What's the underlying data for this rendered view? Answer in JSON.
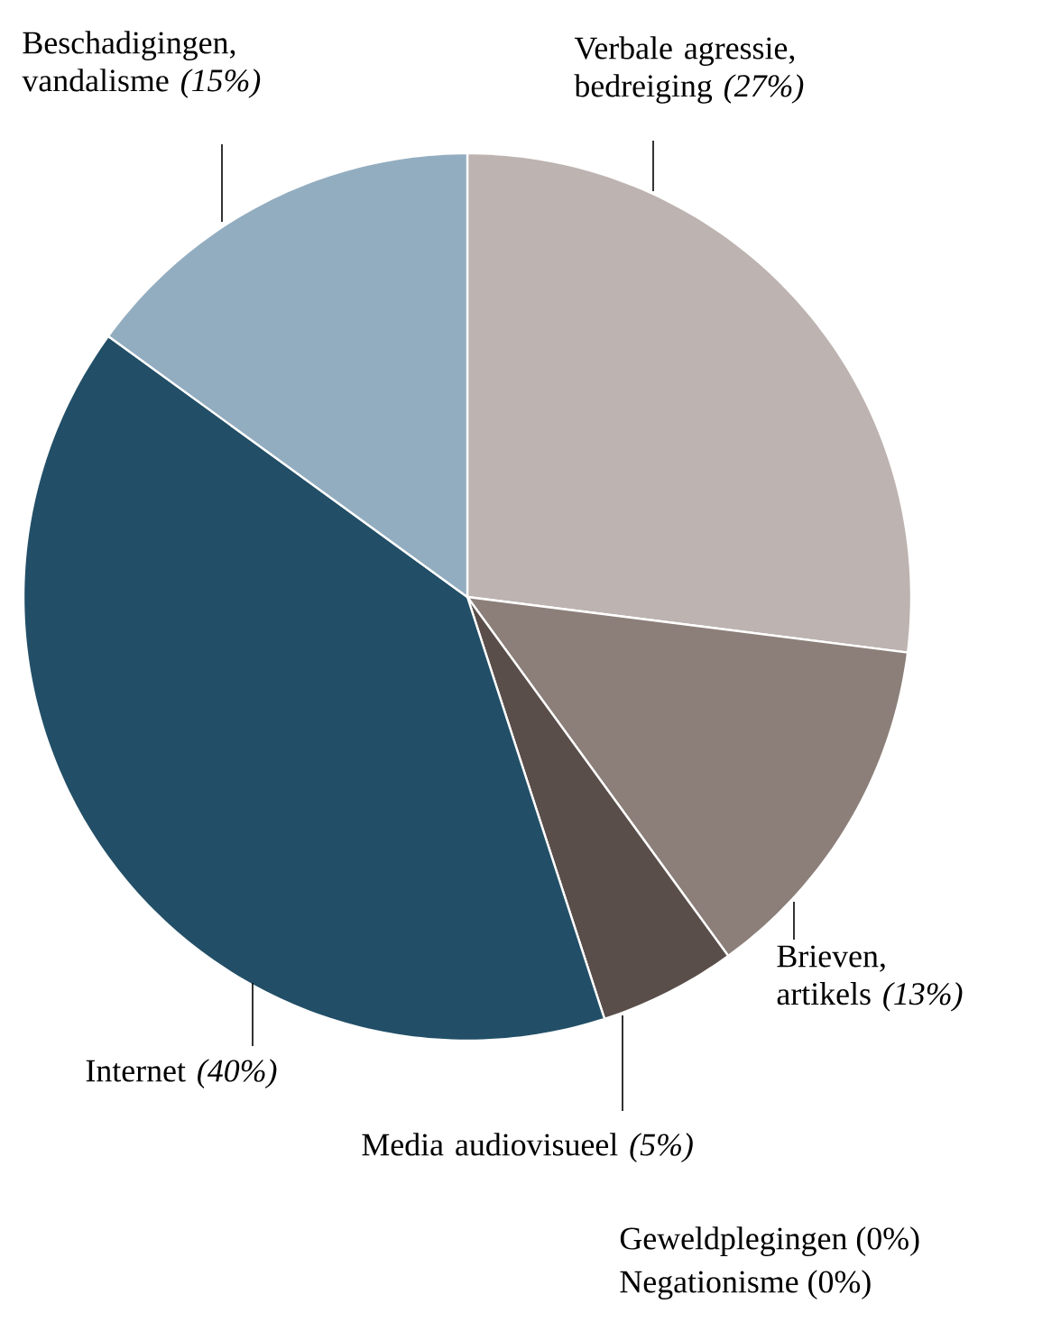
{
  "chart_data": {
    "type": "pie",
    "categories": [
      "Verbale agressie, bedreiging",
      "Brieven, artikels",
      "Media audiovisueel",
      "Internet",
      "Beschadigingen, vandalisme",
      "Geweldplegingen",
      "Negationisme"
    ],
    "values": [
      27,
      13,
      5,
      40,
      15,
      0,
      0
    ],
    "value_labels": [
      "(27%)",
      "(13%)",
      "(5%)",
      "(40%)",
      "(15%)",
      "(0%)",
      "(0%)"
    ],
    "colors": [
      "#bdb3b0",
      "#8c7f79",
      "#5a4e4a",
      "#224f67",
      "#93adc0",
      "#cccccc",
      "#cccccc"
    ]
  }
}
